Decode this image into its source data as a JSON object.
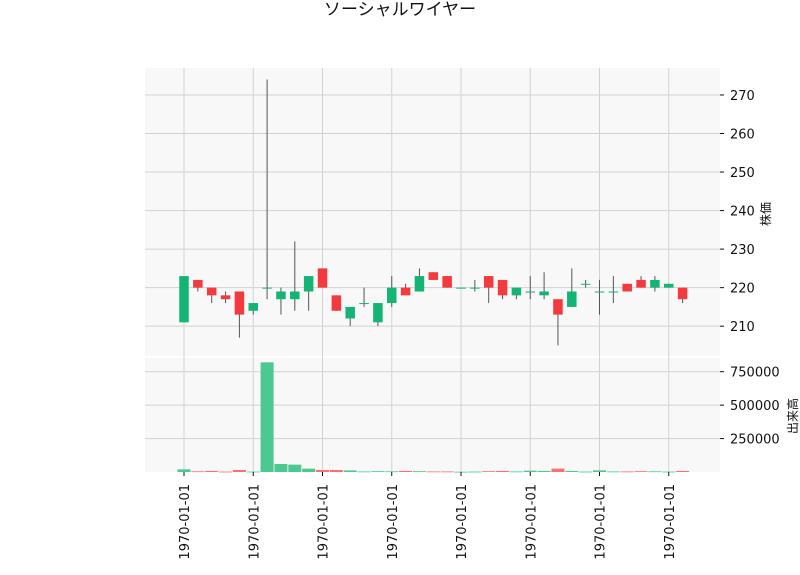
{
  "chart_data": {
    "title": "ソーシャルワイヤー",
    "type": "candlestick",
    "colors": {
      "up": "#13B474",
      "down": "#F23A3F",
      "up_volume": "#4CC891",
      "down_volume": "#FF6F6F",
      "wick": "#555555",
      "panel_bg": "#F8F8F8",
      "grid": "#D2D2D2"
    },
    "x_tick_labels": [
      "1970-01-01",
      "1970-01-01",
      "1970-01-01",
      "1970-01-01",
      "1970-01-01",
      "1970-01-01",
      "1970-01-01",
      "1970-01-01"
    ],
    "price_panel": {
      "ylabel": "株価",
      "ylim": [
        202,
        277
      ],
      "yticks": [
        210,
        220,
        230,
        240,
        250,
        260,
        270
      ],
      "ytick_labels": [
        "210",
        "220",
        "230",
        "240",
        "250",
        "260",
        "270"
      ]
    },
    "volume_panel": {
      "ylabel": "出来高",
      "ylim": [
        0,
        860000
      ],
      "yticks": [
        250000,
        500000,
        750000
      ],
      "ytick_labels": [
        "250000",
        "500000",
        "750000"
      ]
    },
    "candles": [
      {
        "open": 211,
        "high": 223,
        "low": 211,
        "close": 223,
        "volume": 20000
      },
      {
        "open": 222,
        "high": 222,
        "low": 219,
        "close": 220,
        "volume": 5000
      },
      {
        "open": 220,
        "high": 220,
        "low": 216,
        "close": 218,
        "volume": 8000
      },
      {
        "open": 218,
        "high": 219,
        "low": 216,
        "close": 217,
        "volume": 3000
      },
      {
        "open": 219,
        "high": 219,
        "low": 207,
        "close": 213,
        "volume": 15000
      },
      {
        "open": 214,
        "high": 216,
        "low": 213,
        "close": 216,
        "volume": 3000
      },
      {
        "open": 220,
        "high": 274,
        "low": 217,
        "close": 220,
        "volume": 820000
      },
      {
        "open": 217,
        "high": 220,
        "low": 213,
        "close": 219,
        "volume": 60000
      },
      {
        "open": 217,
        "high": 232,
        "low": 214,
        "close": 219,
        "volume": 55000
      },
      {
        "open": 219,
        "high": 223,
        "low": 214,
        "close": 223,
        "volume": 25000
      },
      {
        "open": 225,
        "high": 225,
        "low": 220,
        "close": 220,
        "volume": 15000
      },
      {
        "open": 218,
        "high": 218,
        "low": 214,
        "close": 214,
        "volume": 15000
      },
      {
        "open": 212,
        "high": 215,
        "low": 210,
        "close": 215,
        "volume": 12000
      },
      {
        "open": 216,
        "high": 220,
        "low": 215,
        "close": 216,
        "volume": 4000
      },
      {
        "open": 211,
        "high": 216,
        "low": 210,
        "close": 216,
        "volume": 6000
      },
      {
        "open": 216,
        "high": 223,
        "low": 215,
        "close": 220,
        "volume": 5000
      },
      {
        "open": 220,
        "high": 221,
        "low": 218,
        "close": 218,
        "volume": 8000
      },
      {
        "open": 219,
        "high": 225,
        "low": 219,
        "close": 223,
        "volume": 6000
      },
      {
        "open": 224,
        "high": 224,
        "low": 222,
        "close": 222,
        "volume": 4000
      },
      {
        "open": 223,
        "high": 223,
        "low": 220,
        "close": 220,
        "volume": 4000
      },
      {
        "open": 220,
        "high": 220,
        "low": 220,
        "close": 220,
        "volume": 2000
      },
      {
        "open": 220,
        "high": 222,
        "low": 219,
        "close": 220,
        "volume": 3000
      },
      {
        "open": 223,
        "high": 223,
        "low": 216,
        "close": 220,
        "volume": 6000
      },
      {
        "open": 222,
        "high": 222,
        "low": 217,
        "close": 218,
        "volume": 8000
      },
      {
        "open": 218,
        "high": 220,
        "low": 217,
        "close": 220,
        "volume": 4000
      },
      {
        "open": 219,
        "high": 223,
        "low": 217,
        "close": 219,
        "volume": 10000
      },
      {
        "open": 218,
        "high": 224,
        "low": 217,
        "close": 219,
        "volume": 8000
      },
      {
        "open": 217,
        "high": 217,
        "low": 205,
        "close": 213,
        "volume": 25000
      },
      {
        "open": 215,
        "high": 225,
        "low": 215,
        "close": 219,
        "volume": 8000
      },
      {
        "open": 221,
        "high": 222,
        "low": 220,
        "close": 221,
        "volume": 3000
      },
      {
        "open": 219,
        "high": 222,
        "low": 213,
        "close": 219,
        "volume": 12000
      },
      {
        "open": 219,
        "high": 223,
        "low": 216,
        "close": 219,
        "volume": 4000
      },
      {
        "open": 221,
        "high": 221,
        "low": 219,
        "close": 219,
        "volume": 4000
      },
      {
        "open": 222,
        "high": 223,
        "low": 220,
        "close": 220,
        "volume": 6000
      },
      {
        "open": 220,
        "high": 223,
        "low": 219,
        "close": 222,
        "volume": 5000
      },
      {
        "open": 220,
        "high": 221,
        "low": 220,
        "close": 221,
        "volume": 3000
      },
      {
        "open": 220,
        "high": 220,
        "low": 216,
        "close": 217,
        "volume": 8000
      }
    ]
  }
}
